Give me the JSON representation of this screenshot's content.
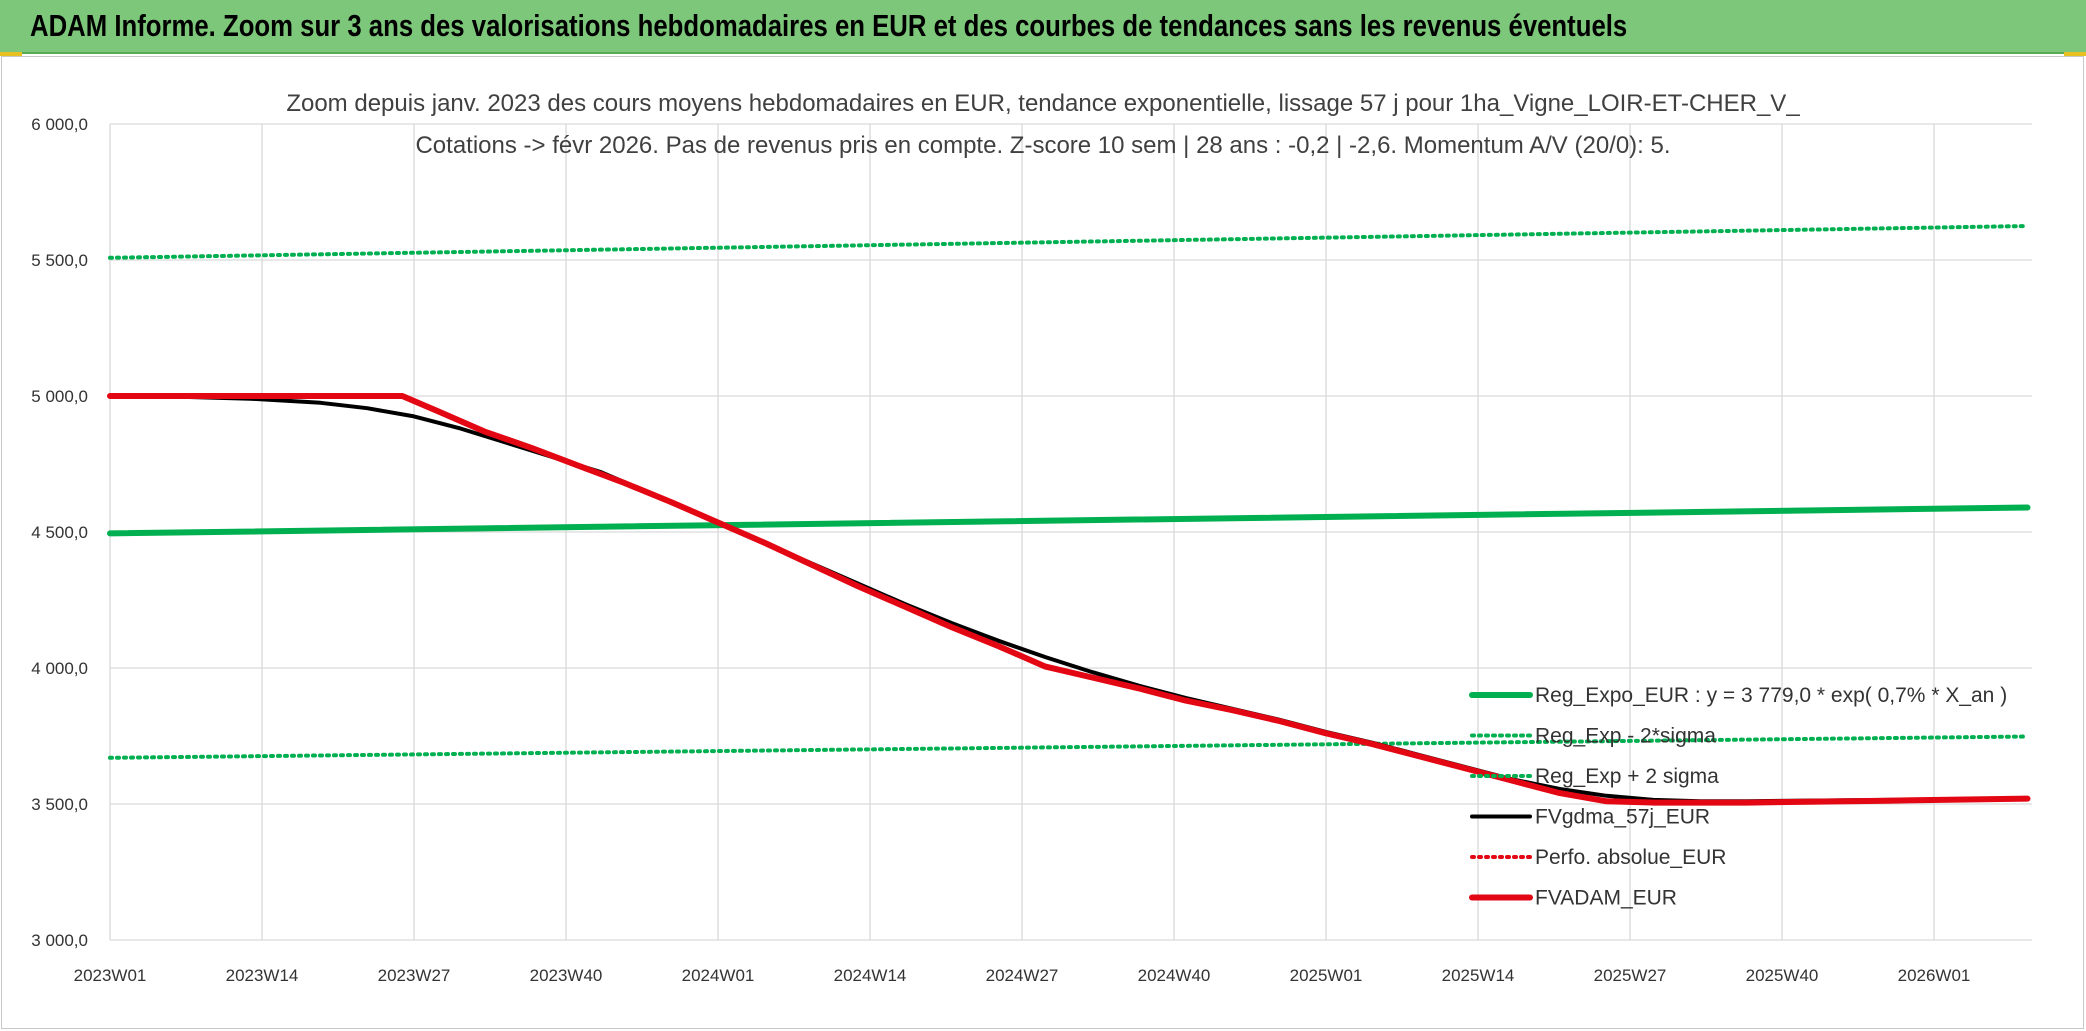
{
  "banner": {
    "title": "ADAM Informe. Zoom sur 3 ans des valorisations hebdomadaires en EUR et des courbes de tendances sans les revenus éventuels"
  },
  "colors": {
    "banner_bg": "#7dc77a",
    "trend_green": "#00b050",
    "black": "#000000",
    "red": "#e30613",
    "grid": "#d9d9d9"
  },
  "chart_data": {
    "type": "line",
    "title_line1": "Zoom depuis janv. 2023 des cours moyens hebdomadaires en EUR, tendance exponentielle, lissage 57 j pour 1ha_Vigne_LOIR-ET-CHER_V_",
    "title_line2": "Cotations -> févr 2026. Pas de revenus pris en compte. Z-score 10 sem | 28 ans : -0,2 | -2,6. Momentum A/V (20/0): 5.",
    "x_ticks": [
      "2023W01",
      "2023W14",
      "2023W27",
      "2023W40",
      "2024W01",
      "2024W14",
      "2024W27",
      "2024W40",
      "2025W01",
      "2025W14",
      "2025W27",
      "2025W40",
      "2026W01"
    ],
    "x_range_weeks": [
      0,
      164
    ],
    "y_ticks": [
      "3 000,0",
      "3 500,0",
      "4 000,0",
      "4 500,0",
      "5 000,0",
      "5 500,0",
      "6 000,0"
    ],
    "ylim": [
      3000,
      6000
    ],
    "grid": true,
    "legend_position": "bottom-right",
    "series": [
      {
        "name": "Reg_Expo_EUR : y = 3 779,0 * exp( 0,7% *  X_an )",
        "color": "#00b050",
        "style": "solid-thick",
        "points": [
          [
            0,
            4495
          ],
          [
            164,
            4590
          ]
        ]
      },
      {
        "name": "Reg_Exp - 2*sigma",
        "color": "#00b050",
        "style": "dotted",
        "points": [
          [
            0,
            3670
          ],
          [
            164,
            3748
          ]
        ]
      },
      {
        "name": "Reg_Exp + 2 sigma",
        "color": "#00b050",
        "style": "dotted",
        "points": [
          [
            0,
            5508
          ],
          [
            164,
            5625
          ]
        ]
      },
      {
        "name": "FVgdma_57j_EUR",
        "color": "#000000",
        "style": "solid",
        "points": [
          [
            0,
            5000
          ],
          [
            6,
            4997
          ],
          [
            12,
            4990
          ],
          [
            18,
            4975
          ],
          [
            22,
            4955
          ],
          [
            26,
            4925
          ],
          [
            30,
            4880
          ],
          [
            36,
            4800
          ],
          [
            42,
            4720
          ],
          [
            48,
            4610
          ],
          [
            52,
            4535
          ],
          [
            56,
            4460
          ],
          [
            60,
            4385
          ],
          [
            64,
            4310
          ],
          [
            68,
            4235
          ],
          [
            72,
            4165
          ],
          [
            76,
            4100
          ],
          [
            80,
            4040
          ],
          [
            84,
            3985
          ],
          [
            88,
            3935
          ],
          [
            92,
            3890
          ],
          [
            96,
            3850
          ],
          [
            100,
            3810
          ],
          [
            104,
            3765
          ],
          [
            108,
            3725
          ],
          [
            112,
            3680
          ],
          [
            116,
            3635
          ],
          [
            120,
            3590
          ],
          [
            124,
            3555
          ],
          [
            128,
            3530
          ],
          [
            132,
            3515
          ],
          [
            136,
            3510
          ],
          [
            140,
            3510
          ],
          [
            144,
            3512
          ],
          [
            152,
            3515
          ],
          [
            164,
            3520
          ]
        ]
      },
      {
        "name": "Perfo. absolue_EUR",
        "color": "#e30613",
        "style": "dotted",
        "points": []
      },
      {
        "name": "FVADAM_EUR",
        "color": "#e30613",
        "style": "solid-thick",
        "points": [
          [
            0,
            5000
          ],
          [
            25,
            5000
          ],
          [
            28,
            4945
          ],
          [
            32,
            4870
          ],
          [
            36,
            4810
          ],
          [
            40,
            4745
          ],
          [
            44,
            4680
          ],
          [
            48,
            4610
          ],
          [
            52,
            4535
          ],
          [
            56,
            4460
          ],
          [
            60,
            4380
          ],
          [
            64,
            4300
          ],
          [
            68,
            4225
          ],
          [
            72,
            4150
          ],
          [
            76,
            4080
          ],
          [
            80,
            4005
          ],
          [
            84,
            3965
          ],
          [
            88,
            3925
          ],
          [
            92,
            3880
          ],
          [
            96,
            3845
          ],
          [
            100,
            3805
          ],
          [
            104,
            3760
          ],
          [
            108,
            3720
          ],
          [
            112,
            3675
          ],
          [
            116,
            3630
          ],
          [
            120,
            3585
          ],
          [
            124,
            3540
          ],
          [
            128,
            3510
          ],
          [
            132,
            3505
          ],
          [
            140,
            3505
          ],
          [
            152,
            3512
          ],
          [
            164,
            3520
          ]
        ]
      }
    ]
  }
}
